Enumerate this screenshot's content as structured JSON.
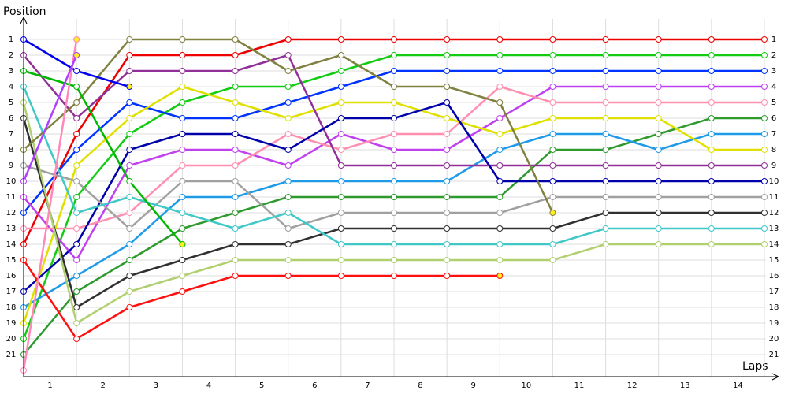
{
  "chart_data": {
    "type": "line",
    "title": "Position",
    "x_label": "Laps",
    "x": [
      0,
      1,
      2,
      3,
      4,
      5,
      6,
      7,
      8,
      9,
      10,
      11,
      12,
      13,
      14
    ],
    "xlim": [
      0,
      14.25
    ],
    "xticks": [
      {
        "value": 0.5,
        "label": "1"
      },
      {
        "value": 1.5,
        "label": "2"
      },
      {
        "value": 2.5,
        "label": "3"
      },
      {
        "value": 3.5,
        "label": "4"
      },
      {
        "value": 4.5,
        "label": "5"
      },
      {
        "value": 5.5,
        "label": "6"
      },
      {
        "value": 6.5,
        "label": "7"
      },
      {
        "value": 7.5,
        "label": "8"
      },
      {
        "value": 8.5,
        "label": "9"
      },
      {
        "value": 9.5,
        "label": "10"
      },
      {
        "value": 10.5,
        "label": "11"
      },
      {
        "value": 11.5,
        "label": "12"
      },
      {
        "value": 12.5,
        "label": "13"
      },
      {
        "value": 13.5,
        "label": "14"
      }
    ],
    "ylim": [
      0,
      22
    ],
    "y_inverted": true,
    "yticks": [
      1,
      2,
      3,
      4,
      5,
      6,
      7,
      8,
      9,
      10,
      11,
      12,
      13,
      14,
      15,
      16,
      17,
      18,
      19,
      20,
      21
    ],
    "grid": true,
    "series": [
      {
        "color": "#ee0000",
        "values": [
          14,
          7,
          2,
          2,
          2,
          1,
          1,
          1,
          1,
          1,
          1,
          1,
          1,
          1,
          1
        ]
      },
      {
        "color": "#11cc11",
        "values": [
          20,
          11,
          7,
          5,
          4,
          4,
          3,
          2,
          2,
          2,
          2,
          2,
          2,
          2,
          2
        ]
      },
      {
        "color": "#0033ff",
        "values": [
          12,
          8,
          5,
          6,
          6,
          5,
          4,
          3,
          3,
          3,
          3,
          3,
          3,
          3,
          3
        ]
      },
      {
        "color": "#c040f0",
        "values": [
          11,
          15,
          9,
          8,
          8,
          9,
          7,
          8,
          8,
          6,
          4,
          4,
          4,
          4,
          4
        ]
      },
      {
        "color": "#ff8fb0",
        "values": [
          13,
          13,
          12,
          9,
          9,
          7,
          8,
          7,
          7,
          4,
          5,
          5,
          5,
          5,
          5
        ]
      },
      {
        "color": "#2e9a2e",
        "values": [
          21,
          17,
          15,
          13,
          12,
          11,
          11,
          11,
          11,
          11,
          8,
          8,
          7,
          6,
          6
        ]
      },
      {
        "color": "#1e9ae8",
        "values": [
          18,
          16,
          14,
          11,
          11,
          10,
          10,
          10,
          10,
          8,
          7,
          7,
          8,
          7,
          7
        ]
      },
      {
        "color": "#e0e000",
        "values": [
          19,
          9,
          6,
          4,
          5,
          6,
          5,
          5,
          6,
          7,
          6,
          6,
          6,
          8,
          8
        ]
      },
      {
        "color": "#903098",
        "values": [
          2,
          6,
          3,
          3,
          3,
          2,
          9,
          9,
          9,
          9,
          9,
          9,
          9,
          9,
          9
        ]
      },
      {
        "color": "#0000aa",
        "values": [
          17,
          14,
          8,
          7,
          7,
          8,
          6,
          6,
          5,
          10,
          10,
          10,
          10,
          10,
          10
        ]
      },
      {
        "color": "#a0a0a0",
        "values": [
          9,
          10,
          13,
          10,
          10,
          13,
          12,
          12,
          12,
          12,
          11,
          11,
          11,
          11,
          11
        ]
      },
      {
        "color": "#303030",
        "values": [
          6,
          18,
          16,
          15,
          14,
          14,
          13,
          13,
          13,
          13,
          13,
          12,
          12,
          12,
          12
        ]
      },
      {
        "color": "#40c8c8",
        "values": [
          4,
          12,
          11,
          12,
          13,
          12,
          14,
          14,
          14,
          14,
          14,
          13,
          13,
          13,
          13
        ]
      },
      {
        "color": "#b0d070",
        "values": [
          5,
          19,
          17,
          16,
          15,
          15,
          15,
          15,
          15,
          15,
          15,
          14,
          14,
          14,
          14
        ]
      },
      {
        "color": "#808040",
        "values": [
          8,
          5,
          1,
          1,
          1,
          3,
          2,
          4,
          4,
          5,
          12,
          null,
          null,
          null,
          null
        ]
      },
      {
        "color": "#ff1010",
        "values": [
          15,
          20,
          18,
          17,
          16,
          16,
          16,
          16,
          16,
          16,
          null,
          null,
          null,
          null,
          null
        ]
      },
      {
        "color": "#00b800",
        "values": [
          3,
          4,
          10,
          14,
          null,
          null,
          null,
          null,
          null,
          null,
          null,
          null,
          null,
          null,
          null
        ]
      },
      {
        "color": "#0000ee",
        "values": [
          1,
          3,
          4,
          null,
          null,
          null,
          null,
          null,
          null,
          null,
          null,
          null,
          null,
          null,
          null
        ]
      },
      {
        "color": "#ff88bb",
        "values": [
          22,
          1,
          null,
          null,
          null,
          null,
          null,
          null,
          null,
          null,
          null,
          null,
          null,
          null,
          null
        ]
      },
      {
        "color": "#b040ff",
        "values": [
          10,
          2,
          null,
          null,
          null,
          null,
          null,
          null,
          null,
          null,
          null,
          null,
          null,
          null,
          null
        ]
      }
    ]
  }
}
